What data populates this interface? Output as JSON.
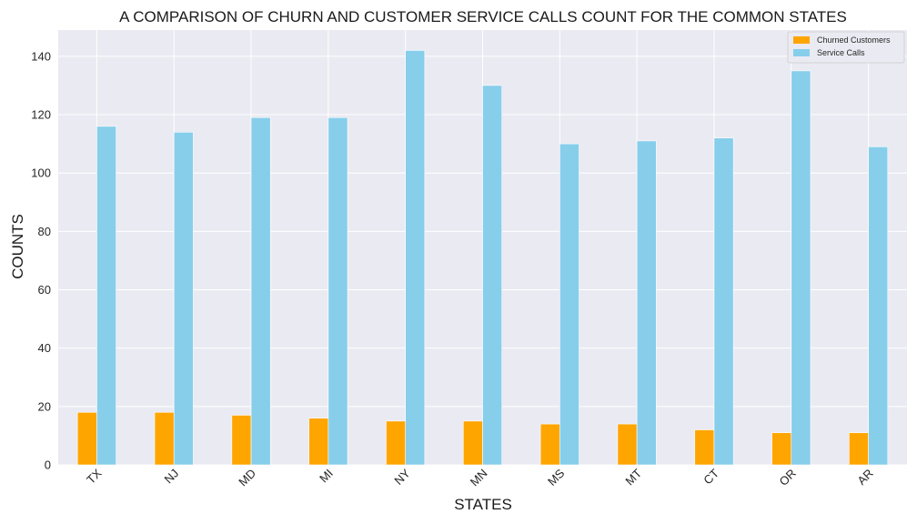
{
  "chart_data": {
    "type": "bar",
    "title": "A COMPARISON OF CHURN AND CUSTOMER SERVICE CALLS COUNT FOR THE COMMON STATES",
    "xlabel": "STATES",
    "ylabel": "COUNTS",
    "categories": [
      "TX",
      "NJ",
      "MD",
      "MI",
      "NY",
      "MN",
      "MS",
      "MT",
      "CT",
      "OR",
      "AR"
    ],
    "series": [
      {
        "name": "Churned Customers",
        "color": "#ffa500",
        "values": [
          18,
          18,
          17,
          16,
          15,
          15,
          14,
          14,
          12,
          11,
          11
        ]
      },
      {
        "name": "Service Calls",
        "color": "#87ceeb",
        "values": [
          116,
          114,
          119,
          119,
          142,
          130,
          110,
          111,
          112,
          135,
          109
        ]
      }
    ],
    "ylim": [
      0,
      149
    ],
    "yticks": [
      0,
      20,
      40,
      60,
      80,
      100,
      120,
      140
    ],
    "grid": true,
    "legend_position": "top-right",
    "background": "#eaeaf2"
  }
}
